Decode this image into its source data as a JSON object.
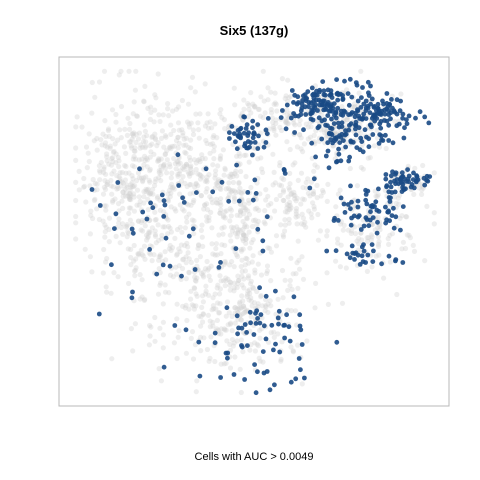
{
  "chart_data": {
    "type": "scatter",
    "title": "Six5 (137g)",
    "xlabel": "Cells with AUC > 0.0049",
    "ylabel": "",
    "grid": false,
    "legend": "none",
    "axis_ticks": false,
    "xlim": [
      0,
      100
    ],
    "ylim": [
      0,
      100
    ],
    "colors": {
      "background_cells": "#cfcfcf",
      "high_auc_cells": "#1a4a85",
      "frame": "#b8b8b8"
    },
    "series": [
      {
        "role": "all-cells",
        "clusters": [
          {
            "cx": 15,
            "cy": 65,
            "sx": 7,
            "sy": 12,
            "n": 320
          },
          {
            "cx": 30,
            "cy": 70,
            "sx": 9,
            "sy": 10,
            "n": 280
          },
          {
            "cx": 46,
            "cy": 58,
            "sx": 6,
            "sy": 12,
            "n": 220
          },
          {
            "cx": 44,
            "cy": 26,
            "sx": 10,
            "sy": 9,
            "n": 300
          },
          {
            "cx": 62,
            "cy": 60,
            "sx": 4,
            "sy": 6,
            "n": 90
          },
          {
            "cx": 60,
            "cy": 86,
            "sx": 10,
            "sy": 5,
            "n": 160
          },
          {
            "cx": 74,
            "cy": 82,
            "sx": 7,
            "sy": 5,
            "n": 120
          },
          {
            "cx": 82,
            "cy": 52,
            "sx": 7,
            "sy": 6,
            "n": 120
          },
          {
            "cx": 92,
            "cy": 66,
            "sx": 3,
            "sy": 3,
            "n": 40
          },
          {
            "cx": 26,
            "cy": 42,
            "sx": 8,
            "sy": 6,
            "n": 100
          }
        ]
      },
      {
        "role": "high-auc-cells",
        "clusters": [
          {
            "cx": 68,
            "cy": 89,
            "sx": 5,
            "sy": 3.5,
            "n": 110
          },
          {
            "cx": 82,
            "cy": 86,
            "sx": 5,
            "sy": 4,
            "n": 130
          },
          {
            "cx": 73,
            "cy": 77,
            "sx": 3,
            "sy": 3.5,
            "n": 45
          },
          {
            "cx": 48,
            "cy": 80,
            "sx": 3,
            "sy": 3.5,
            "n": 45
          },
          {
            "cx": 91,
            "cy": 66,
            "sx": 3,
            "sy": 2,
            "n": 50
          },
          {
            "cx": 82,
            "cy": 58,
            "sx": 5,
            "sy": 4,
            "n": 60
          },
          {
            "cx": 80,
            "cy": 44,
            "sx": 5,
            "sy": 3,
            "n": 25
          },
          {
            "cx": 50,
            "cy": 18,
            "sx": 9,
            "sy": 7,
            "n": 70
          },
          {
            "cx": 20,
            "cy": 52,
            "sx": 10,
            "sy": 12,
            "n": 25
          },
          {
            "cx": 45,
            "cy": 55,
            "sx": 12,
            "sy": 15,
            "n": 30
          }
        ]
      }
    ]
  }
}
